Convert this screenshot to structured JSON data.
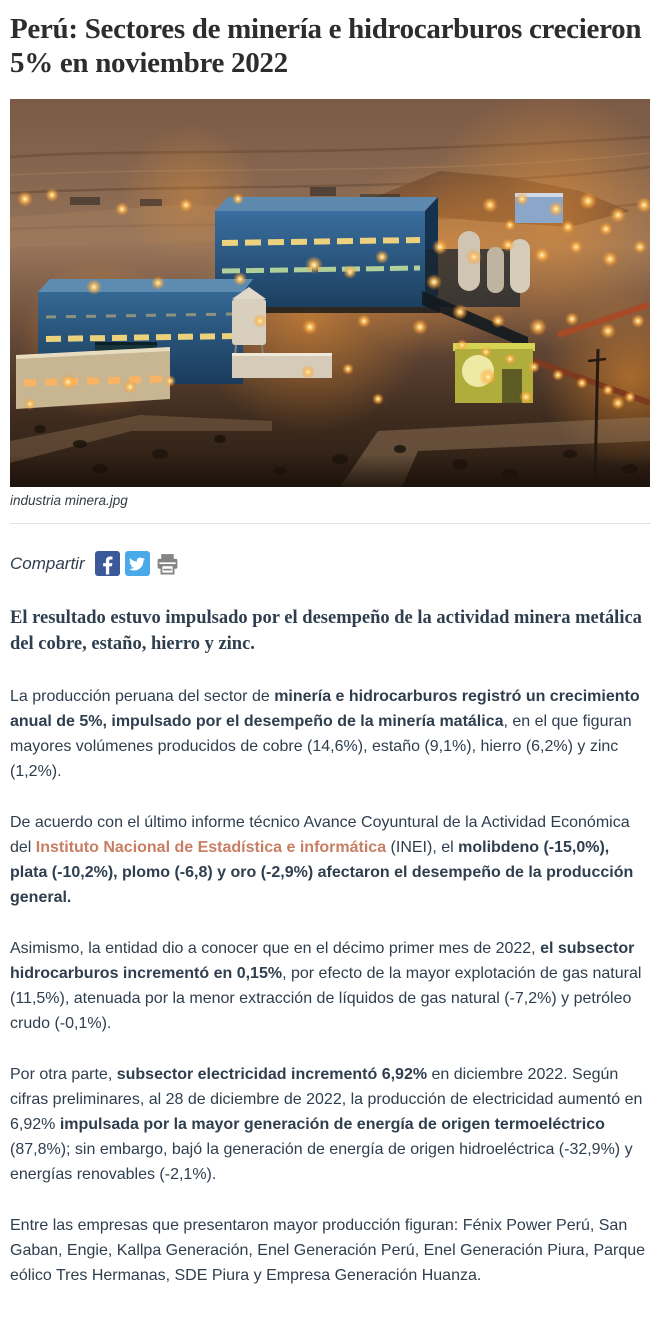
{
  "page": {
    "title": "Perú: Sectores de minería e hidrocarburos crecieron 5% en noviembre 2022"
  },
  "figure": {
    "caption": "industria minera.jpg",
    "alt": "Planta minera industrial iluminada al anochecer con edificios azules y luces naranjas"
  },
  "share": {
    "label": "Compartir",
    "icons": [
      {
        "name": "facebook-icon",
        "color": "#3b5998"
      },
      {
        "name": "twitter-icon",
        "color": "#4aa9e9"
      },
      {
        "name": "print-icon",
        "color": "#848484"
      }
    ]
  },
  "article": {
    "link_color": "#c87e62",
    "lead": "El resultado estuvo impulsado por el desempeño de la actividad minera metálica del cobre, estaño, hierro y zinc.",
    "paragraphs": [
      {
        "runs": [
          {
            "text": "La producción peruana del sector de ",
            "bold": false
          },
          {
            "text": "minería e hidrocarburos registró un crecimiento anual de 5%, impulsado por el desempeño de la minería matálica",
            "bold": true
          },
          {
            "text": ", en el que figuran mayores volúmenes producidos de cobre (14,6%), estaño (9,1%), hierro (6,2%) y zinc (1,2%).",
            "bold": false
          }
        ]
      },
      {
        "runs": [
          {
            "text": "De acuerdo con el último informe técnico Avance Coyuntural de la Actividad Económica del ",
            "bold": false
          },
          {
            "text": "Instituto Nacional de Estadística e informática",
            "bold": true,
            "link": true
          },
          {
            "text": " (INEI), el ",
            "bold": false
          },
          {
            "text": "molibdeno (-15,0%), plata (-10,2%), plomo (-6,8) y oro (-2,9%) afectaron el desempeño de la producción general.",
            "bold": true
          }
        ]
      },
      {
        "runs": [
          {
            "text": "Asimismo, la entidad dio a conocer que en el décimo primer mes de 2022, ",
            "bold": false
          },
          {
            "text": "el subsector hidrocarburos incrementó en 0,15%",
            "bold": true
          },
          {
            "text": ", por efecto de la mayor explotación de gas natural (11,5%), atenuada por la menor extracción de líquidos de gas natural (-7,2%) y petróleo crudo (-0,1%).",
            "bold": false
          }
        ]
      },
      {
        "runs": [
          {
            "text": "Por otra parte, ",
            "bold": false
          },
          {
            "text": "subsector electricidad incrementó 6,92%",
            "bold": true
          },
          {
            "text": " en diciembre 2022. Según cifras preliminares, al 28 de diciembre de 2022, la producción de electricidad aumentó en 6,92% ",
            "bold": false
          },
          {
            "text": "impulsada por la mayor generación de energía de origen termoeléctrico",
            "bold": true
          },
          {
            "text": " (87,8%); sin embargo, bajó la generación de energía de origen hidroeléctrica (-32,9%) y energías renovables (-2,1%).",
            "bold": false
          }
        ]
      },
      {
        "runs": [
          {
            "text": "Entre las empresas que presentaron mayor producción figuran: Fénix Power Perú, San Gaban, Engie, Kallpa Generación, Enel Generación Perú, Enel Generación Piura, Parque eólico Tres Hermanas, SDE Piura y Empresa Generación Huanza.",
            "bold": false
          }
        ]
      }
    ]
  }
}
